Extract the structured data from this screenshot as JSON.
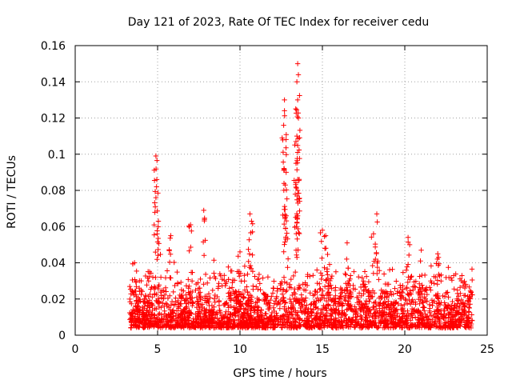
{
  "chart_data": {
    "type": "scatter",
    "title": "Day 121 of 2023, Rate Of TEC Index for receiver cedu",
    "xlabel": "GPS time / hours",
    "ylabel": "ROTI / TECUs",
    "xlim": [
      0,
      25
    ],
    "ylim": [
      0,
      0.16
    ],
    "x_ticks": [
      0,
      5,
      10,
      15,
      20,
      25
    ],
    "x_tick_labels": [
      "0",
      "5",
      "10",
      "15",
      "20",
      "25"
    ],
    "y_ticks": [
      0,
      0.02,
      0.04,
      0.06,
      0.08,
      0.1,
      0.12,
      0.14,
      0.16
    ],
    "y_tick_labels": [
      "0",
      "0.02",
      "0.04",
      "0.06",
      "0.08",
      "0.1",
      "0.12",
      "0.14",
      "0.16"
    ],
    "grid": true,
    "marker": "+",
    "color": "#ff0000",
    "series": [
      {
        "name": "ROTI",
        "x_range": [
          3.3,
          24.1
        ],
        "typical_range": [
          0.004,
          0.03
        ],
        "peaks": [
          {
            "x": 3.6,
            "y": 0.04
          },
          {
            "x": 4.9,
            "y": 0.099
          },
          {
            "x": 4.95,
            "y": 0.086
          },
          {
            "x": 4.9,
            "y": 0.076
          },
          {
            "x": 5.05,
            "y": 0.063
          },
          {
            "x": 5.8,
            "y": 0.055
          },
          {
            "x": 7.0,
            "y": 0.061
          },
          {
            "x": 7.8,
            "y": 0.069
          },
          {
            "x": 10.0,
            "y": 0.046
          },
          {
            "x": 10.6,
            "y": 0.067
          },
          {
            "x": 10.7,
            "y": 0.063
          },
          {
            "x": 12.7,
            "y": 0.13
          },
          {
            "x": 12.7,
            "y": 0.124
          },
          {
            "x": 12.65,
            "y": 0.116
          },
          {
            "x": 12.8,
            "y": 0.09
          },
          {
            "x": 12.75,
            "y": 0.083
          },
          {
            "x": 12.8,
            "y": 0.066
          },
          {
            "x": 13.5,
            "y": 0.15
          },
          {
            "x": 13.45,
            "y": 0.14
          },
          {
            "x": 13.5,
            "y": 0.13
          },
          {
            "x": 13.55,
            "y": 0.12
          },
          {
            "x": 13.4,
            "y": 0.107
          },
          {
            "x": 13.5,
            "y": 0.101
          },
          {
            "x": 13.4,
            "y": 0.095
          },
          {
            "x": 13.5,
            "y": 0.08
          },
          {
            "x": 13.5,
            "y": 0.066
          },
          {
            "x": 15.0,
            "y": 0.058
          },
          {
            "x": 15.2,
            "y": 0.055
          },
          {
            "x": 16.5,
            "y": 0.051
          },
          {
            "x": 18.3,
            "y": 0.067
          },
          {
            "x": 18.1,
            "y": 0.056
          },
          {
            "x": 20.2,
            "y": 0.054
          },
          {
            "x": 21.0,
            "y": 0.047
          },
          {
            "x": 22.0,
            "y": 0.045
          }
        ]
      }
    ]
  }
}
